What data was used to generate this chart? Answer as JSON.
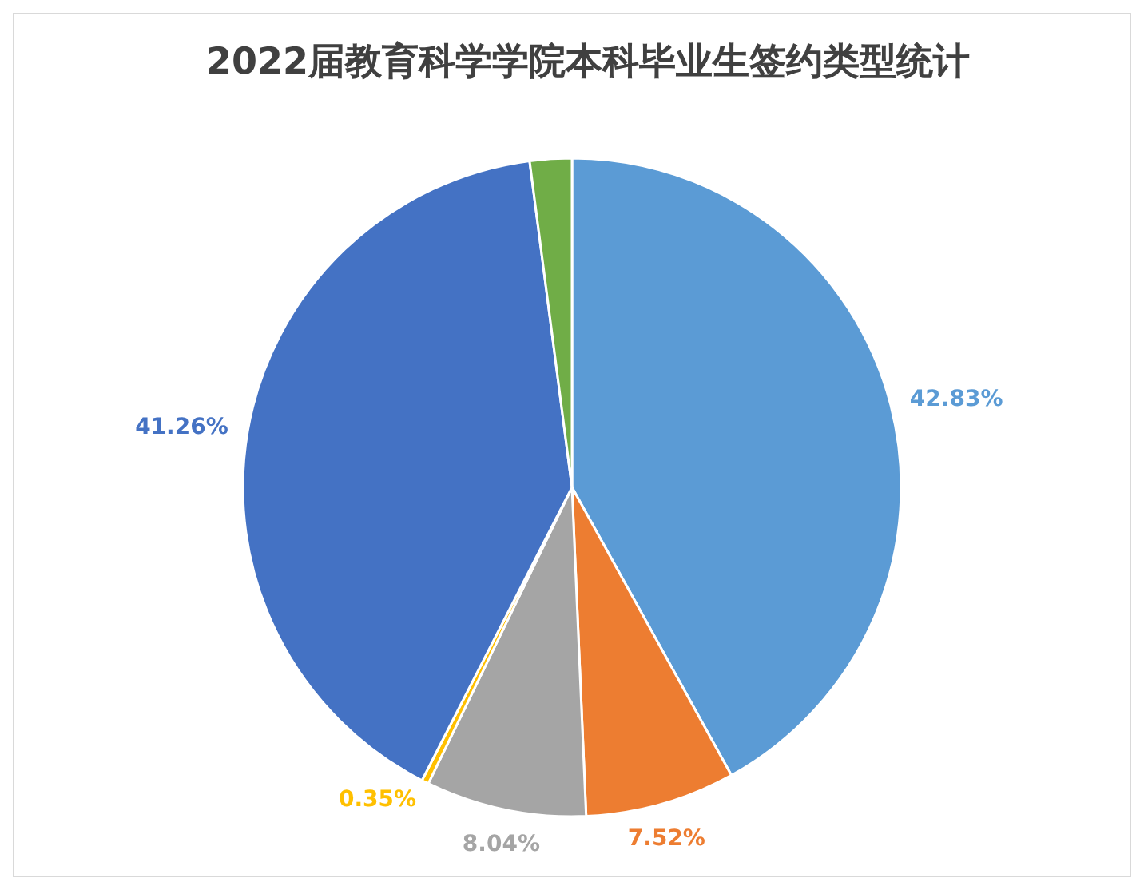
{
  "chart_data": {
    "type": "pie",
    "title": "2022届教育科学学院本科毕业生签约类型统计",
    "categories": [
      null,
      null,
      null,
      null,
      null,
      null
    ],
    "values": [
      42.83,
      7.52,
      8.04,
      0.35,
      41.26,
      2.1
    ],
    "value_labels": [
      "42.83%",
      "7.52%",
      "8.04%",
      "0.35%",
      "41.26%",
      null
    ],
    "colors": [
      "#5b9bd5",
      "#ed7d31",
      "#a5a5a5",
      "#ffc000",
      "#4472c4",
      "#70ad47"
    ],
    "legend": false
  }
}
